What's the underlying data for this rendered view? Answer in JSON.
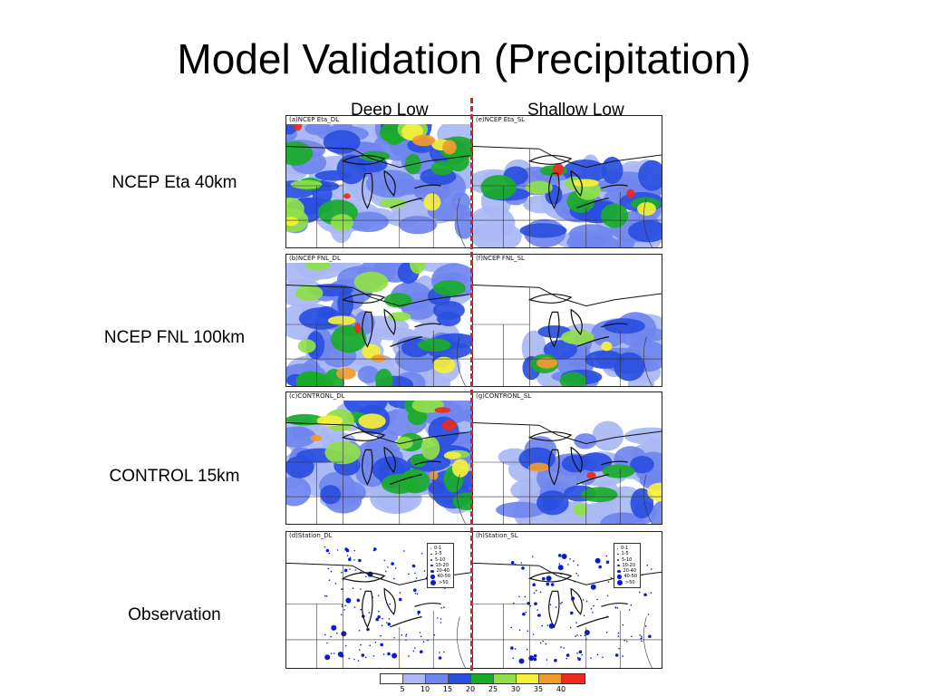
{
  "slide": {
    "title": "Model Validation (Precipitation)"
  },
  "columns": {
    "left": "Deep Low",
    "right": "Shallow Low"
  },
  "rows": [
    {
      "label": "NCEP Eta 40km",
      "left_title": "(a)NCEP Eta_DL",
      "right_title": "(e)NCEP Eta_SL"
    },
    {
      "label": "NCEP FNL 100km",
      "left_title": "(b)NCEP FNL_DL",
      "right_title": "(f)NCEP FNL_SL"
    },
    {
      "label": "CONTROL 15km",
      "left_title": "(c)CONTRONL_DL",
      "right_title": "(g)CONTRONL_SL"
    },
    {
      "label": "Observation",
      "left_title": "(d)Station_DL",
      "right_title": "(h)Station_SL"
    }
  ],
  "station_legend": {
    "entries": [
      "0-1",
      "1-5",
      "5-10",
      "10-20",
      "20-40",
      "40-50",
      ">50"
    ]
  },
  "colorbar": {
    "colors": [
      "#ffffff",
      "#a9b9f5",
      "#6f86ee",
      "#2a4fe0",
      "#1aab2a",
      "#8fe04a",
      "#f5f03a",
      "#f29a2e",
      "#ef2a1e"
    ],
    "tick_labels": [
      "5",
      "10",
      "15",
      "20",
      "25",
      "30",
      "35",
      "40"
    ]
  },
  "palette": {
    "light_blue": "#a9b9f5",
    "mid_blue": "#6f86ee",
    "blue": "#2a4fe0",
    "green": "#1aab2a",
    "light_green": "#8fe04a",
    "yellow": "#f5f03a",
    "orange": "#f29a2e",
    "red": "#ef2a1e",
    "station_dot": "#0a1ccf",
    "divider": "#e02020"
  }
}
